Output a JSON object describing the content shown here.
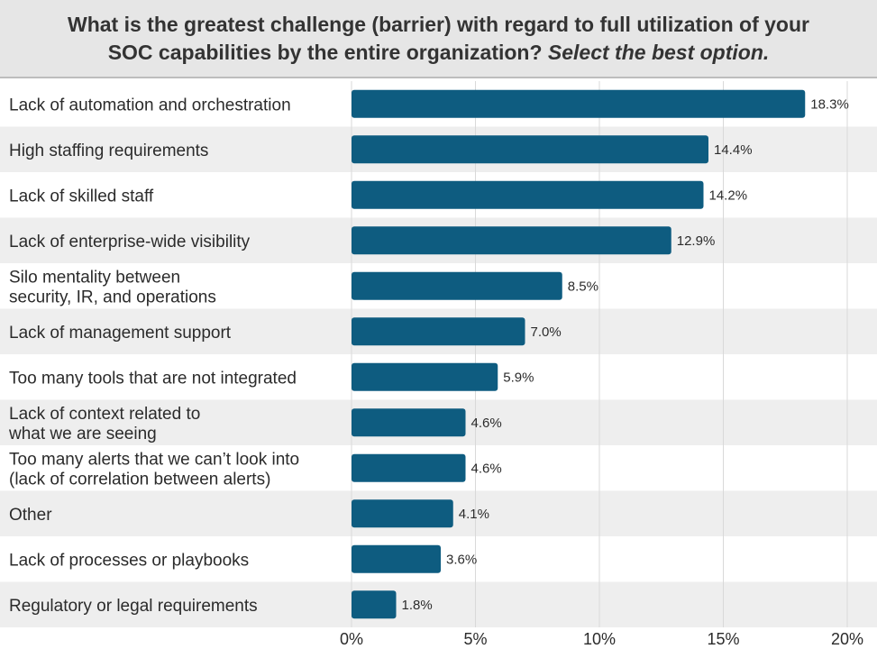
{
  "title": {
    "line1": "What is the greatest challenge (barrier) with regard to full utilization of your",
    "line2_main": "SOC capabilities by the entire organization?",
    "line2_italic": "Select the best option."
  },
  "colors": {
    "bar": "#0e5c80",
    "stripe": "#eeeeee",
    "grid": "#d9d9d9",
    "title_band": "#e6e6e6"
  },
  "chart_data": {
    "type": "bar",
    "orientation": "horizontal",
    "title": "What is the greatest challenge (barrier) with regard to full utilization of your SOC capabilities by the entire organization? Select the best option.",
    "categories": [
      [
        "Lack of automation and orchestration"
      ],
      [
        "High staffing requirements"
      ],
      [
        "Lack of skilled staff"
      ],
      [
        "Lack of enterprise-wide visibility"
      ],
      [
        "Silo mentality between",
        "security, IR, and operations"
      ],
      [
        "Lack of management support"
      ],
      [
        "Too many tools that are not integrated"
      ],
      [
        "Lack of context related to",
        "what we are seeing"
      ],
      [
        "Too many alerts that we can’t look into",
        "(lack of correlation between alerts)"
      ],
      [
        "Other"
      ],
      [
        "Lack of processes or playbooks"
      ],
      [
        "Regulatory or legal requirements"
      ]
    ],
    "values": [
      18.3,
      14.4,
      14.2,
      12.9,
      8.5,
      7.0,
      5.9,
      4.6,
      4.6,
      4.1,
      3.6,
      1.8
    ],
    "value_labels": [
      "18.3%",
      "14.4%",
      "14.2%",
      "12.9%",
      "8.5%",
      "7.0%",
      "5.9%",
      "4.6%",
      "4.6%",
      "4.1%",
      "3.6%",
      "1.8%"
    ],
    "xlim": [
      0,
      20
    ],
    "xticks": [
      0,
      5,
      10,
      15,
      20
    ],
    "xtick_labels": [
      "0%",
      "5%",
      "10%",
      "15%",
      "20%"
    ],
    "xlabel": "",
    "ylabel": "",
    "grid": true
  }
}
